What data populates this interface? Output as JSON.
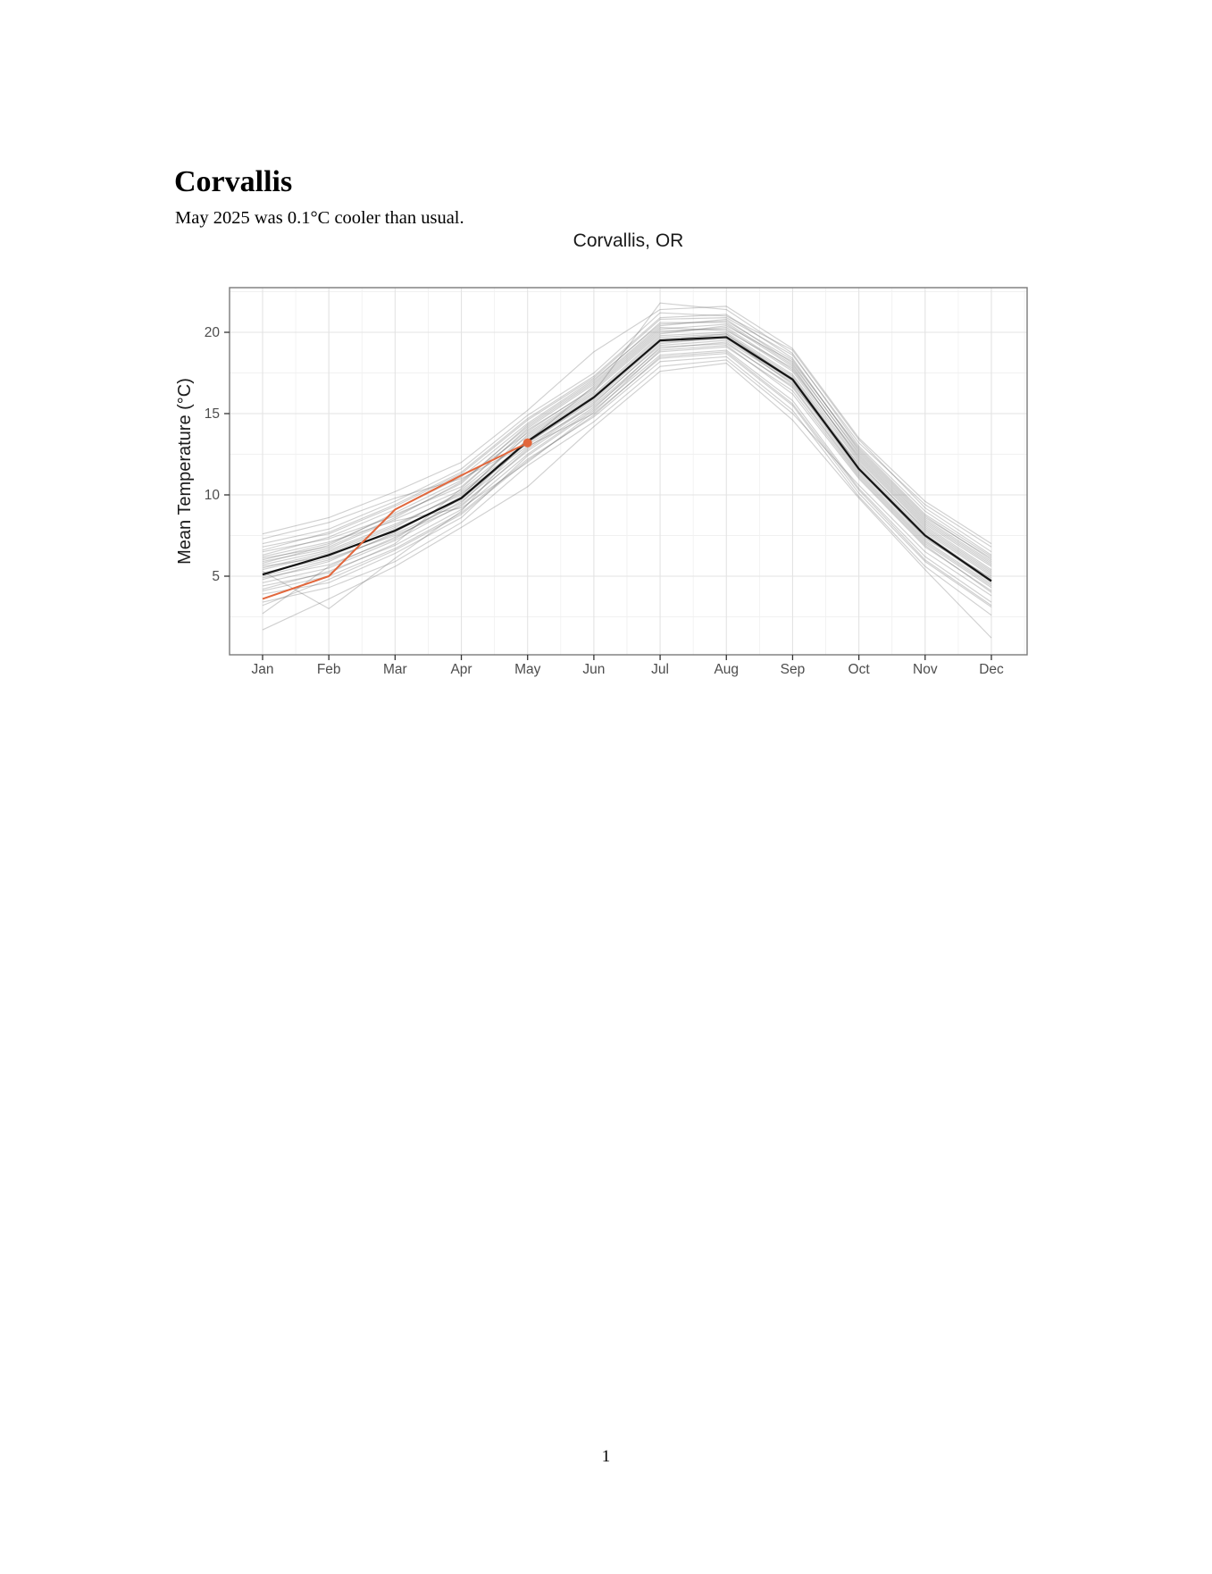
{
  "document": {
    "heading": "Corvallis",
    "subtitle": "May 2025 was 0.1°C cooler than usual.",
    "page_number": "1"
  },
  "chart_data": {
    "type": "line",
    "title": "Corvallis, OR",
    "xlabel": "",
    "ylabel": "Mean Temperature (°C)",
    "categories": [
      "Jan",
      "Feb",
      "Mar",
      "Apr",
      "May",
      "Jun",
      "Jul",
      "Aug",
      "Sep",
      "Oct",
      "Nov",
      "Dec"
    ],
    "yticks": [
      5,
      10,
      15,
      20
    ],
    "yticks_minor": [
      2.5,
      7.5,
      12.5,
      17.5,
      22.5
    ],
    "ylim": [
      0.16,
      22.75
    ],
    "grid": true,
    "legend_position": "none",
    "style": {
      "panel_background": "#ffffff",
      "panel_border": "#7a7a7a",
      "grid_major": "#e3e3e3",
      "grid_minor": "#f1f1f1",
      "tick_color": "#333333",
      "tick_label_color": "#4d4d4d",
      "title_color": "#1a1a1a",
      "historical_color": "#555555",
      "historical_opacity": 0.28,
      "mean_color": "#141414",
      "current_color": "#e2673c"
    },
    "series": [
      {
        "name": "historical-years",
        "role": "background",
        "values": [
          [
            6.2,
            7.1,
            8.4,
            9.2,
            12.0,
            15.1,
            18.9,
            19.2,
            16.2,
            11.0,
            6.8,
            4.1
          ],
          [
            4.4,
            5.2,
            7.0,
            10.4,
            14.1,
            16.8,
            20.3,
            20.1,
            17.8,
            12.3,
            8.2,
            5.6
          ],
          [
            5.8,
            6.9,
            8.9,
            10.9,
            13.8,
            16.4,
            19.9,
            20.4,
            18.2,
            12.9,
            8.8,
            6.2
          ],
          [
            3.9,
            4.6,
            6.4,
            8.6,
            12.4,
            15.2,
            18.6,
            18.9,
            15.8,
            10.4,
            6.2,
            3.4
          ],
          [
            6.8,
            7.6,
            9.3,
            11.3,
            14.6,
            17.2,
            20.8,
            20.9,
            18.6,
            13.2,
            9.4,
            6.8
          ],
          [
            2.7,
            5.6,
            7.4,
            9.6,
            12.9,
            15.7,
            19.2,
            19.5,
            16.9,
            11.4,
            7.2,
            4.5
          ],
          [
            5.3,
            3.0,
            6.1,
            9.0,
            13.5,
            16.1,
            19.7,
            19.9,
            17.3,
            11.8,
            7.7,
            5.0
          ],
          [
            7.3,
            8.3,
            9.8,
            11.0,
            13.1,
            15.5,
            19.0,
            19.4,
            16.6,
            11.2,
            7.0,
            4.3
          ],
          [
            4.8,
            5.9,
            7.7,
            9.9,
            13.9,
            16.6,
            20.1,
            20.2,
            17.6,
            12.1,
            8.0,
            5.3
          ],
          [
            5.5,
            6.5,
            8.1,
            10.1,
            13.0,
            15.0,
            18.4,
            18.7,
            15.5,
            10.1,
            5.9,
            3.1
          ],
          [
            6.5,
            7.3,
            8.7,
            10.7,
            14.3,
            17.0,
            20.6,
            20.6,
            18.0,
            12.6,
            8.5,
            5.9
          ],
          [
            4.1,
            5.0,
            6.7,
            8.9,
            12.2,
            14.8,
            18.2,
            18.5,
            15.2,
            9.9,
            5.6,
            2.6
          ],
          [
            5.9,
            6.7,
            8.5,
            10.3,
            13.6,
            16.2,
            19.8,
            20.0,
            17.4,
            12.0,
            7.8,
            5.1
          ],
          [
            7.0,
            7.9,
            9.6,
            11.6,
            14.9,
            17.5,
            21.2,
            21.0,
            18.9,
            13.4,
            9.2,
            6.5
          ],
          [
            3.4,
            4.3,
            5.9,
            8.3,
            11.8,
            14.5,
            17.9,
            18.3,
            15.0,
            10.6,
            6.5,
            3.8
          ],
          [
            5.6,
            6.2,
            7.9,
            9.7,
            13.2,
            15.8,
            19.4,
            19.6,
            17.0,
            11.5,
            7.4,
            4.6
          ],
          [
            6.0,
            7.0,
            8.8,
            10.5,
            14.0,
            16.5,
            20.0,
            20.3,
            17.7,
            12.4,
            8.3,
            5.7
          ],
          [
            4.6,
            5.5,
            7.2,
            9.4,
            12.7,
            15.4,
            18.8,
            19.1,
            16.4,
            11.1,
            6.9,
            4.0
          ],
          [
            5.0,
            6.0,
            7.6,
            9.5,
            13.4,
            16.0,
            19.6,
            19.8,
            17.2,
            11.7,
            7.6,
            4.8
          ],
          [
            6.3,
            7.4,
            9.1,
            11.1,
            14.4,
            17.1,
            20.5,
            20.7,
            18.3,
            12.8,
            8.7,
            6.0
          ],
          [
            4.2,
            5.3,
            6.9,
            9.1,
            12.5,
            15.3,
            19.1,
            19.3,
            16.7,
            11.3,
            7.1,
            4.4
          ],
          [
            5.7,
            6.6,
            8.2,
            10.0,
            13.7,
            16.3,
            21.8,
            21.4,
            18.7,
            13.0,
            9.0,
            6.3
          ],
          [
            3.2,
            4.8,
            6.6,
            8.8,
            12.1,
            14.9,
            18.5,
            18.8,
            15.6,
            10.3,
            6.0,
            3.2
          ],
          [
            6.6,
            7.7,
            9.4,
            11.4,
            14.7,
            17.3,
            20.9,
            21.1,
            18.4,
            12.7,
            8.6,
            6.1
          ],
          [
            5.2,
            6.1,
            7.5,
            9.3,
            12.8,
            15.6,
            19.3,
            19.7,
            16.8,
            11.9,
            7.9,
            5.2
          ],
          [
            4.9,
            5.7,
            7.3,
            9.8,
            13.3,
            16.7,
            20.2,
            20.5,
            17.9,
            12.2,
            8.1,
            5.4
          ],
          [
            7.6,
            8.6,
            10.2,
            12.0,
            15.2,
            18.8,
            21.4,
            21.6,
            19.0,
            13.5,
            9.6,
            7.0
          ],
          [
            1.7,
            3.6,
            5.6,
            8.0,
            10.5,
            14.2,
            17.6,
            18.1,
            14.6,
            9.8,
            5.4,
            1.2
          ],
          [
            5.4,
            6.4,
            8.0,
            10.2,
            13.2,
            15.9,
            19.5,
            19.9,
            17.1,
            11.6,
            7.3,
            4.9
          ],
          [
            6.1,
            6.8,
            8.6,
            10.8,
            14.2,
            16.9,
            20.4,
            20.8,
            18.1,
            12.5,
            8.4,
            5.8
          ]
        ]
      },
      {
        "name": "climatological-mean",
        "role": "mean",
        "values": [
          5.1,
          6.3,
          7.8,
          9.8,
          13.3,
          16.0,
          19.5,
          19.7,
          17.1,
          11.6,
          7.5,
          4.7
        ]
      },
      {
        "name": "2025",
        "role": "current",
        "values": [
          3.6,
          5.0,
          9.1,
          11.2,
          13.2
        ],
        "endpoint_marker": true,
        "endpoint_month": "May",
        "endpoint_value": 13.2
      }
    ]
  }
}
